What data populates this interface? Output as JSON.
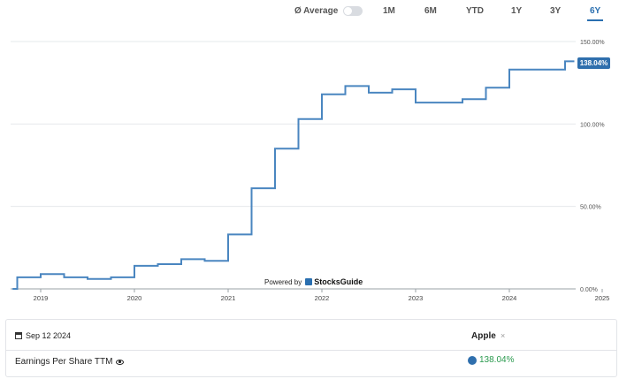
{
  "controls": {
    "average_label": "Ø Average",
    "ranges": [
      "1M",
      "6M",
      "YTD",
      "1Y",
      "3Y",
      "6Y"
    ],
    "active_range": "6Y"
  },
  "colors": {
    "line": "#4a86c0",
    "accent": "#2f6fad",
    "positive": "#2a9a4e"
  },
  "chart_data": {
    "type": "line",
    "y_ticks": [
      "0.00%",
      "50.00%",
      "100.00%",
      "150.00%"
    ],
    "x_ticks": [
      "2019",
      "2020",
      "2021",
      "2022",
      "2023",
      "2024",
      "2025"
    ],
    "ylim": [
      0,
      150
    ],
    "xlim": [
      2018.7,
      2025.0
    ],
    "grid": true,
    "last_value_label": "138.04%",
    "series": [
      {
        "name": "Apple",
        "x": [
          2018.7,
          2018.75,
          2018.75,
          2019.0,
          2019.0,
          2019.25,
          2019.25,
          2019.5,
          2019.5,
          2019.75,
          2019.75,
          2020.0,
          2020.0,
          2020.25,
          2020.25,
          2020.5,
          2020.5,
          2020.75,
          2020.75,
          2021.0,
          2021.0,
          2021.25,
          2021.25,
          2021.5,
          2021.5,
          2021.75,
          2021.75,
          2022.0,
          2022.0,
          2022.25,
          2022.25,
          2022.5,
          2022.5,
          2022.75,
          2022.75,
          2023.0,
          2023.0,
          2023.25,
          2023.25,
          2023.5,
          2023.5,
          2023.75,
          2023.75,
          2024.0,
          2024.0,
          2024.25,
          2024.25,
          2024.5,
          2024.5,
          2024.6,
          2024.6,
          2024.7
        ],
        "y": [
          0,
          0,
          7,
          7,
          9,
          9,
          7,
          7,
          6,
          6,
          7,
          7,
          14,
          14,
          15,
          15,
          18,
          18,
          17,
          17,
          33,
          33,
          61,
          61,
          85,
          85,
          103,
          103,
          118,
          118,
          123,
          123,
          119,
          119,
          121,
          121,
          113,
          113,
          113,
          113,
          115,
          115,
          122,
          122,
          133,
          133,
          133,
          133,
          133,
          133,
          138,
          138
        ]
      }
    ]
  },
  "tooltip": {
    "date": "Sep 12 2024",
    "company": "Apple",
    "close": "×",
    "metric_label": "Earnings Per Share TTM",
    "metric_value": "138.04%"
  },
  "powered": {
    "text": "Powered by",
    "brand": "StocksGuide"
  }
}
